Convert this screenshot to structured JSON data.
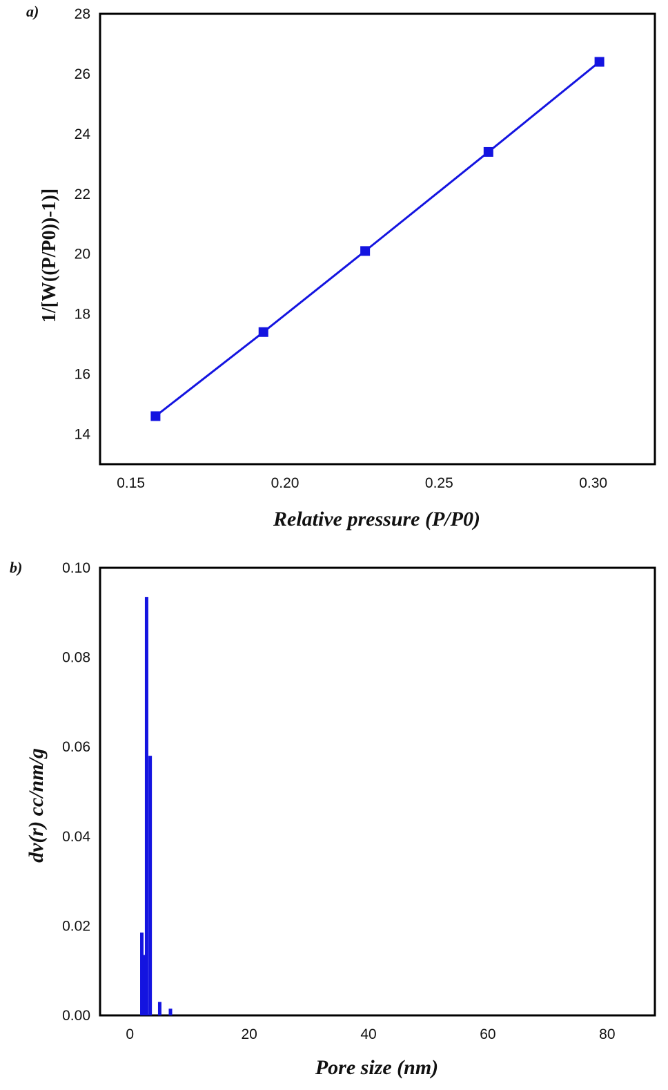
{
  "chart_data": [
    {
      "panel": "a)",
      "type": "line",
      "xlabel": "Relative pressure (P/P0)",
      "ylabel": "1/[W((P/P0))-1)]",
      "xlim": [
        0.14,
        0.32
      ],
      "ylim": [
        13,
        28
      ],
      "xticks": [
        0.15,
        0.2,
        0.25,
        0.3
      ],
      "xtick_labels": [
        "0.15",
        "0.20",
        "0.25",
        "0.30"
      ],
      "yticks": [
        14,
        16,
        18,
        20,
        22,
        24,
        26,
        28
      ],
      "ytick_labels": [
        "14",
        "16",
        "18",
        "20",
        "22",
        "24",
        "26",
        "28"
      ],
      "color": "#1414e0",
      "marker": "square",
      "series": [
        {
          "x": [
            0.158,
            0.193,
            0.226,
            0.266,
            0.302
          ],
          "y": [
            14.6,
            17.4,
            20.1,
            23.4,
            26.4
          ]
        }
      ]
    },
    {
      "panel": "b)",
      "type": "bar",
      "xlabel": "Pore size (nm)",
      "ylabel": "dv(r) cc/nm/g",
      "xlim": [
        -5,
        88
      ],
      "ylim": [
        0,
        0.1
      ],
      "xticks": [
        0,
        20,
        40,
        60,
        80
      ],
      "xtick_labels": [
        "0",
        "20",
        "40",
        "60",
        "80"
      ],
      "yticks": [
        0.0,
        0.02,
        0.04,
        0.06,
        0.08,
        0.1
      ],
      "ytick_labels": [
        "0.00",
        "0.02",
        "0.04",
        "0.06",
        "0.08",
        "0.10"
      ],
      "color": "#1414e0",
      "series": [
        {
          "x": [
            2.0,
            2.4,
            2.8,
            3.4,
            5.0,
            6.8
          ],
          "y": [
            0.0185,
            0.0135,
            0.0935,
            0.058,
            0.003,
            0.0015
          ]
        }
      ]
    }
  ]
}
